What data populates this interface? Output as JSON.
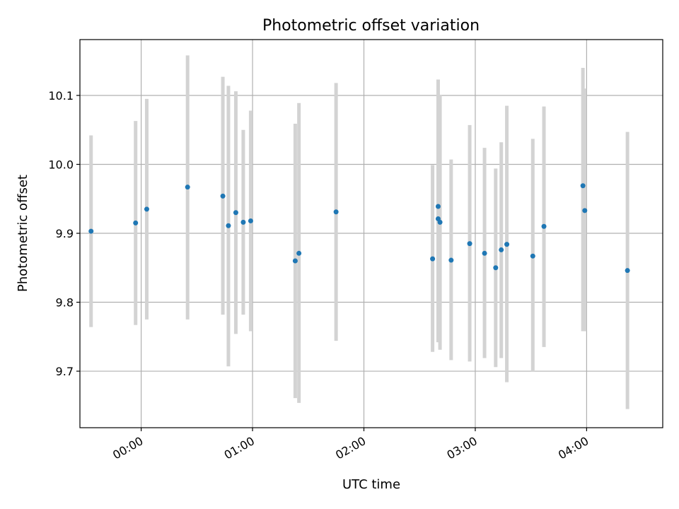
{
  "chart_data": {
    "type": "scatter",
    "title": "Photometric offset variation",
    "xlabel": "UTC time",
    "ylabel": "Photometric offset",
    "x_ticks": [
      "00:00",
      "01:00",
      "02:00",
      "03:00",
      "04:00"
    ],
    "y_ticks": [
      "9.7",
      "9.8",
      "9.9",
      "10.0",
      "10.1"
    ],
    "xlim": [
      "23:27",
      "04:41"
    ],
    "ylim": [
      9.618,
      10.181
    ],
    "grid": true,
    "error_bar_color": "#d3d3d3",
    "point_color": "#1f77b4",
    "points": [
      {
        "time": "23:33",
        "y": 9.903,
        "ylow": 9.764,
        "yhigh": 10.042
      },
      {
        "time": "23:57",
        "y": 9.915,
        "ylow": 9.767,
        "yhigh": 10.063
      },
      {
        "time": "00:03",
        "y": 9.935,
        "ylow": 9.775,
        "yhigh": 10.095
      },
      {
        "time": "00:25",
        "y": 9.967,
        "ylow": 9.775,
        "yhigh": 10.158
      },
      {
        "time": "00:44",
        "y": 9.954,
        "ylow": 9.782,
        "yhigh": 10.127
      },
      {
        "time": "00:47",
        "y": 9.911,
        "ylow": 9.707,
        "yhigh": 10.114
      },
      {
        "time": "00:51",
        "y": 9.93,
        "ylow": 9.754,
        "yhigh": 10.106
      },
      {
        "time": "00:55",
        "y": 9.916,
        "ylow": 9.782,
        "yhigh": 10.05
      },
      {
        "time": "00:59",
        "y": 9.918,
        "ylow": 9.758,
        "yhigh": 10.078
      },
      {
        "time": "01:23",
        "y": 9.86,
        "ylow": 9.661,
        "yhigh": 10.059
      },
      {
        "time": "01:25",
        "y": 9.871,
        "ylow": 9.654,
        "yhigh": 10.089
      },
      {
        "time": "01:45",
        "y": 9.931,
        "ylow": 9.744,
        "yhigh": 10.118
      },
      {
        "time": "02:37",
        "y": 9.863,
        "ylow": 9.728,
        "yhigh": 9.999
      },
      {
        "time": "02:40",
        "y": 9.939,
        "ylow": 9.755,
        "yhigh": 10.123
      },
      {
        "time": "02:40",
        "y": 9.921,
        "ylow": 9.742,
        "yhigh": 10.1
      },
      {
        "time": "02:41",
        "y": 9.916,
        "ylow": 9.731,
        "yhigh": 10.101
      },
      {
        "time": "02:47",
        "y": 9.861,
        "ylow": 9.716,
        "yhigh": 10.007
      },
      {
        "time": "02:57",
        "y": 9.885,
        "ylow": 9.714,
        "yhigh": 10.057
      },
      {
        "time": "03:05",
        "y": 9.871,
        "ylow": 9.719,
        "yhigh": 10.024
      },
      {
        "time": "03:11",
        "y": 9.85,
        "ylow": 9.706,
        "yhigh": 9.994
      },
      {
        "time": "03:14",
        "y": 9.876,
        "ylow": 9.719,
        "yhigh": 10.032
      },
      {
        "time": "03:17",
        "y": 9.884,
        "ylow": 9.684,
        "yhigh": 10.085
      },
      {
        "time": "03:31",
        "y": 9.867,
        "ylow": 9.699,
        "yhigh": 10.037
      },
      {
        "time": "03:37",
        "y": 9.91,
        "ylow": 9.735,
        "yhigh": 10.084
      },
      {
        "time": "03:58",
        "y": 9.969,
        "ylow": 9.758,
        "yhigh": 10.14
      },
      {
        "time": "03:59",
        "y": 9.933,
        "ylow": 9.758,
        "yhigh": 10.11
      },
      {
        "time": "04:22",
        "y": 9.846,
        "ylow": 9.645,
        "yhigh": 10.047
      }
    ]
  }
}
